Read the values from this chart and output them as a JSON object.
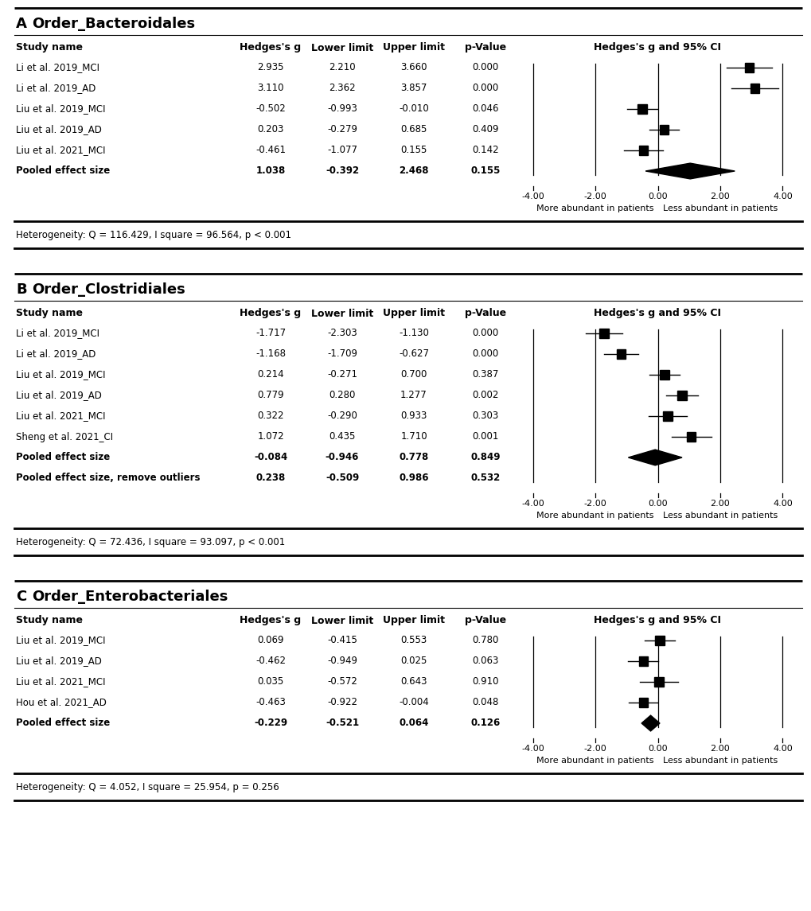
{
  "panels": [
    {
      "label": "A",
      "title": "Order_Bacteroidales",
      "studies": [
        {
          "name": "Li et al. 2019_MCI",
          "g": 2.935,
          "lower": 2.21,
          "upper": 3.66,
          "p": "0.000",
          "bold": false,
          "pooled": false,
          "pooled2": false
        },
        {
          "name": "Li et al. 2019_AD",
          "g": 3.11,
          "lower": 2.362,
          "upper": 3.857,
          "p": "0.000",
          "bold": false,
          "pooled": false,
          "pooled2": false
        },
        {
          "name": "Liu et al. 2019_MCI",
          "g": -0.502,
          "lower": -0.993,
          "upper": -0.01,
          "p": "0.046",
          "bold": false,
          "pooled": false,
          "pooled2": false
        },
        {
          "name": "Liu et al. 2019_AD",
          "g": 0.203,
          "lower": -0.279,
          "upper": 0.685,
          "p": "0.409",
          "bold": false,
          "pooled": false,
          "pooled2": false
        },
        {
          "name": "Liu et al. 2021_MCI",
          "g": -0.461,
          "lower": -1.077,
          "upper": 0.155,
          "p": "0.142",
          "bold": false,
          "pooled": false,
          "pooled2": false
        },
        {
          "name": "Pooled effect size",
          "g": 1.038,
          "lower": -0.392,
          "upper": 2.468,
          "p": "0.155",
          "bold": true,
          "pooled": true,
          "pooled2": false
        }
      ],
      "heterogeneity": "Heterogeneity: Q = 116.429, I square = 96.564, p < 0.001"
    },
    {
      "label": "B",
      "title": "Order_Clostridiales",
      "studies": [
        {
          "name": "Li et al. 2019_MCI",
          "g": -1.717,
          "lower": -2.303,
          "upper": -1.13,
          "p": "0.000",
          "bold": false,
          "pooled": false,
          "pooled2": false
        },
        {
          "name": "Li et al. 2019_AD",
          "g": -1.168,
          "lower": -1.709,
          "upper": -0.627,
          "p": "0.000",
          "bold": false,
          "pooled": false,
          "pooled2": false
        },
        {
          "name": "Liu et al. 2019_MCI",
          "g": 0.214,
          "lower": -0.271,
          "upper": 0.7,
          "p": "0.387",
          "bold": false,
          "pooled": false,
          "pooled2": false
        },
        {
          "name": "Liu et al. 2019_AD",
          "g": 0.779,
          "lower": 0.28,
          "upper": 1.277,
          "p": "0.002",
          "bold": false,
          "pooled": false,
          "pooled2": false
        },
        {
          "name": "Liu et al. 2021_MCI",
          "g": 0.322,
          "lower": -0.29,
          "upper": 0.933,
          "p": "0.303",
          "bold": false,
          "pooled": false,
          "pooled2": false
        },
        {
          "name": "Sheng et al. 2021_CI",
          "g": 1.072,
          "lower": 0.435,
          "upper": 1.71,
          "p": "0.001",
          "bold": false,
          "pooled": false,
          "pooled2": false
        },
        {
          "name": "Pooled effect size",
          "g": -0.084,
          "lower": -0.946,
          "upper": 0.778,
          "p": "0.849",
          "bold": true,
          "pooled": true,
          "pooled2": false
        },
        {
          "name": "Pooled effect size, remove outliers",
          "g": 0.238,
          "lower": -0.509,
          "upper": 0.986,
          "p": "0.532",
          "bold": true,
          "pooled": false,
          "pooled2": true
        }
      ],
      "heterogeneity": "Heterogeneity: Q = 72.436, I square = 93.097, p < 0.001"
    },
    {
      "label": "C",
      "title": "Order_Enterobacteriales",
      "studies": [
        {
          "name": "Liu et al. 2019_MCI",
          "g": 0.069,
          "lower": -0.415,
          "upper": 0.553,
          "p": "0.780",
          "bold": false,
          "pooled": false,
          "pooled2": false
        },
        {
          "name": "Liu et al. 2019_AD",
          "g": -0.462,
          "lower": -0.949,
          "upper": 0.025,
          "p": "0.063",
          "bold": false,
          "pooled": false,
          "pooled2": false
        },
        {
          "name": "Liu et al. 2021_MCI",
          "g": 0.035,
          "lower": -0.572,
          "upper": 0.643,
          "p": "0.910",
          "bold": false,
          "pooled": false,
          "pooled2": false
        },
        {
          "name": "Hou et al. 2021_AD",
          "g": -0.463,
          "lower": -0.922,
          "upper": -0.004,
          "p": "0.048",
          "bold": false,
          "pooled": false,
          "pooled2": false
        },
        {
          "name": "Pooled effect size",
          "g": -0.229,
          "lower": -0.521,
          "upper": 0.064,
          "p": "0.126",
          "bold": true,
          "pooled": true,
          "pooled2": false
        }
      ],
      "heterogeneity": "Heterogeneity: Q = 4.052, I square = 25.954, p = 0.256"
    }
  ],
  "xlim": [
    -4.5,
    4.5
  ],
  "xticks": [
    -4.0,
    -2.0,
    0.0,
    2.0,
    4.0
  ],
  "xticklabels": [
    "-4.00",
    "-2.00",
    "0.00",
    "2.00",
    "4.00"
  ],
  "xlabel_left": "More abundant in patients",
  "xlabel_right": "Less abundant in patients",
  "background_color": "#ffffff"
}
